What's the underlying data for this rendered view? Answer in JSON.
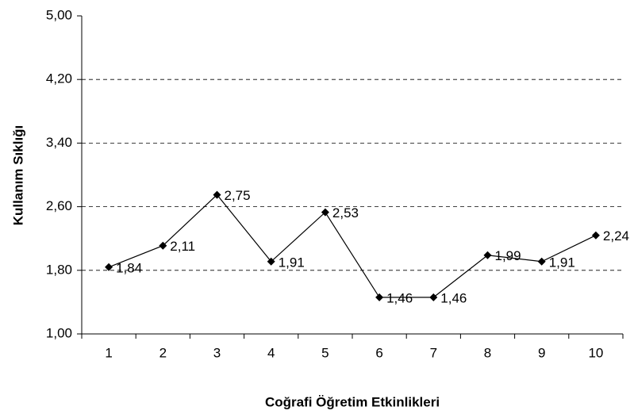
{
  "chart_data": {
    "type": "line",
    "x_label": "Coğrafi Öğretim Etkinlikleri",
    "y_label": "Kullanım Sıklığı",
    "categories": [
      "1",
      "2",
      "3",
      "4",
      "5",
      "6",
      "7",
      "8",
      "9",
      "10"
    ],
    "values": [
      1.84,
      2.11,
      2.75,
      1.91,
      2.53,
      1.46,
      1.46,
      1.99,
      1.91,
      2.24
    ],
    "value_labels": [
      "1,84",
      "2,11",
      "2,75",
      "1,91",
      "2,53",
      "1,46",
      "1,46",
      "1,99",
      "1,91",
      "2,24"
    ],
    "color": "#000000",
    "ylim": [
      1,
      5
    ],
    "yticks": [
      {
        "value": 1,
        "label": "1,00"
      },
      {
        "value": 1.8,
        "label": "1,80"
      },
      {
        "value": 2.6,
        "label": "2,60"
      },
      {
        "value": 3.4,
        "label": "3,40"
      },
      {
        "value": 4.2,
        "label": "4,20"
      },
      {
        "value": 5,
        "label": "5,00"
      }
    ],
    "grid": true
  }
}
